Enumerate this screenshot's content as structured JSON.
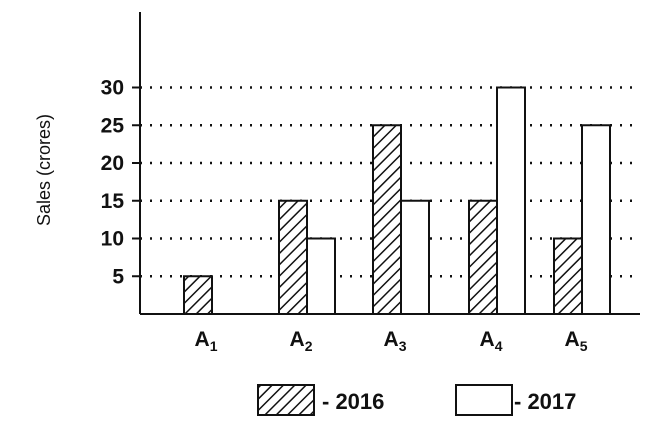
{
  "chart_data": {
    "type": "bar",
    "categories": [
      {
        "main": "A",
        "sub": "1"
      },
      {
        "main": "A",
        "sub": "2"
      },
      {
        "main": "A",
        "sub": "3"
      },
      {
        "main": "A",
        "sub": "4"
      },
      {
        "main": "A",
        "sub": "5"
      }
    ],
    "series": [
      {
        "name": "2016",
        "legend_label": "- 2016",
        "values": [
          5,
          15,
          25,
          15,
          10
        ],
        "fill": "hatch"
      },
      {
        "name": "2017",
        "legend_label": "- 2017",
        "values": [
          0,
          10,
          15,
          30,
          25
        ],
        "fill": "white"
      }
    ],
    "title": "",
    "xlabel": "",
    "ylabel": "Sales (crores)",
    "ylim": [
      0,
      40
    ],
    "yticks": [
      5,
      10,
      15,
      20,
      25,
      30
    ],
    "grid": "dotted-horizontal",
    "legend": "bottom-right",
    "colors": {
      "ink": "#111111",
      "background": "#ffffff"
    }
  }
}
